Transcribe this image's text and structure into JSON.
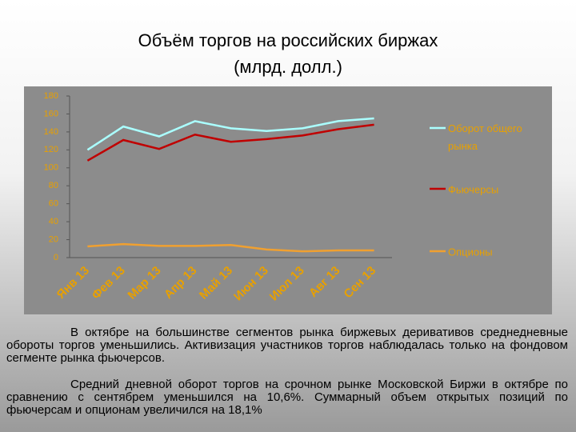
{
  "chart_data": {
    "type": "line",
    "title": "Объём торгов на российских биржах",
    "subtitle": "(млрд. долл.)",
    "categories": [
      "Янв 13",
      "Фев 13",
      "Мар 13",
      "Апр 13",
      "Май 13",
      "Июн 13",
      "Июл 13",
      "Авг 13",
      "Сен 13"
    ],
    "series": [
      {
        "name": "Оборот общего рынка",
        "color": "#aaffff",
        "values": [
          120,
          146,
          135,
          152,
          144,
          141,
          144,
          152,
          155
        ]
      },
      {
        "name": "Фьючерсы",
        "color": "#c00000",
        "values": [
          108,
          131,
          121,
          137,
          129,
          132,
          136,
          143,
          148
        ]
      },
      {
        "name": "Опционы",
        "color": "#f0a030",
        "values": [
          12.5,
          15,
          13,
          13,
          14,
          9,
          7,
          8,
          8
        ]
      }
    ],
    "ylim": [
      0,
      180
    ],
    "yticks": [
      0,
      20,
      40,
      60,
      80,
      100,
      120,
      140,
      160,
      180
    ],
    "grid": false,
    "legend": "right"
  },
  "text": {
    "paragraphs": [
      "В октябре на большинстве сегментов рынка биржевых деривативов среднедневные обороты торгов уменьшились. Активизация участников торгов наблюдалась только на фондовом сегменте рынка фьючерсов.",
      "Средний дневной оборот торгов на срочном рынке Московской Биржи в октябре по сравнению с сентябрем уменьшился на 10,6%. Суммарный объем открытых позиций по фьючерсам и опционам увеличился на 18,1%"
    ]
  }
}
